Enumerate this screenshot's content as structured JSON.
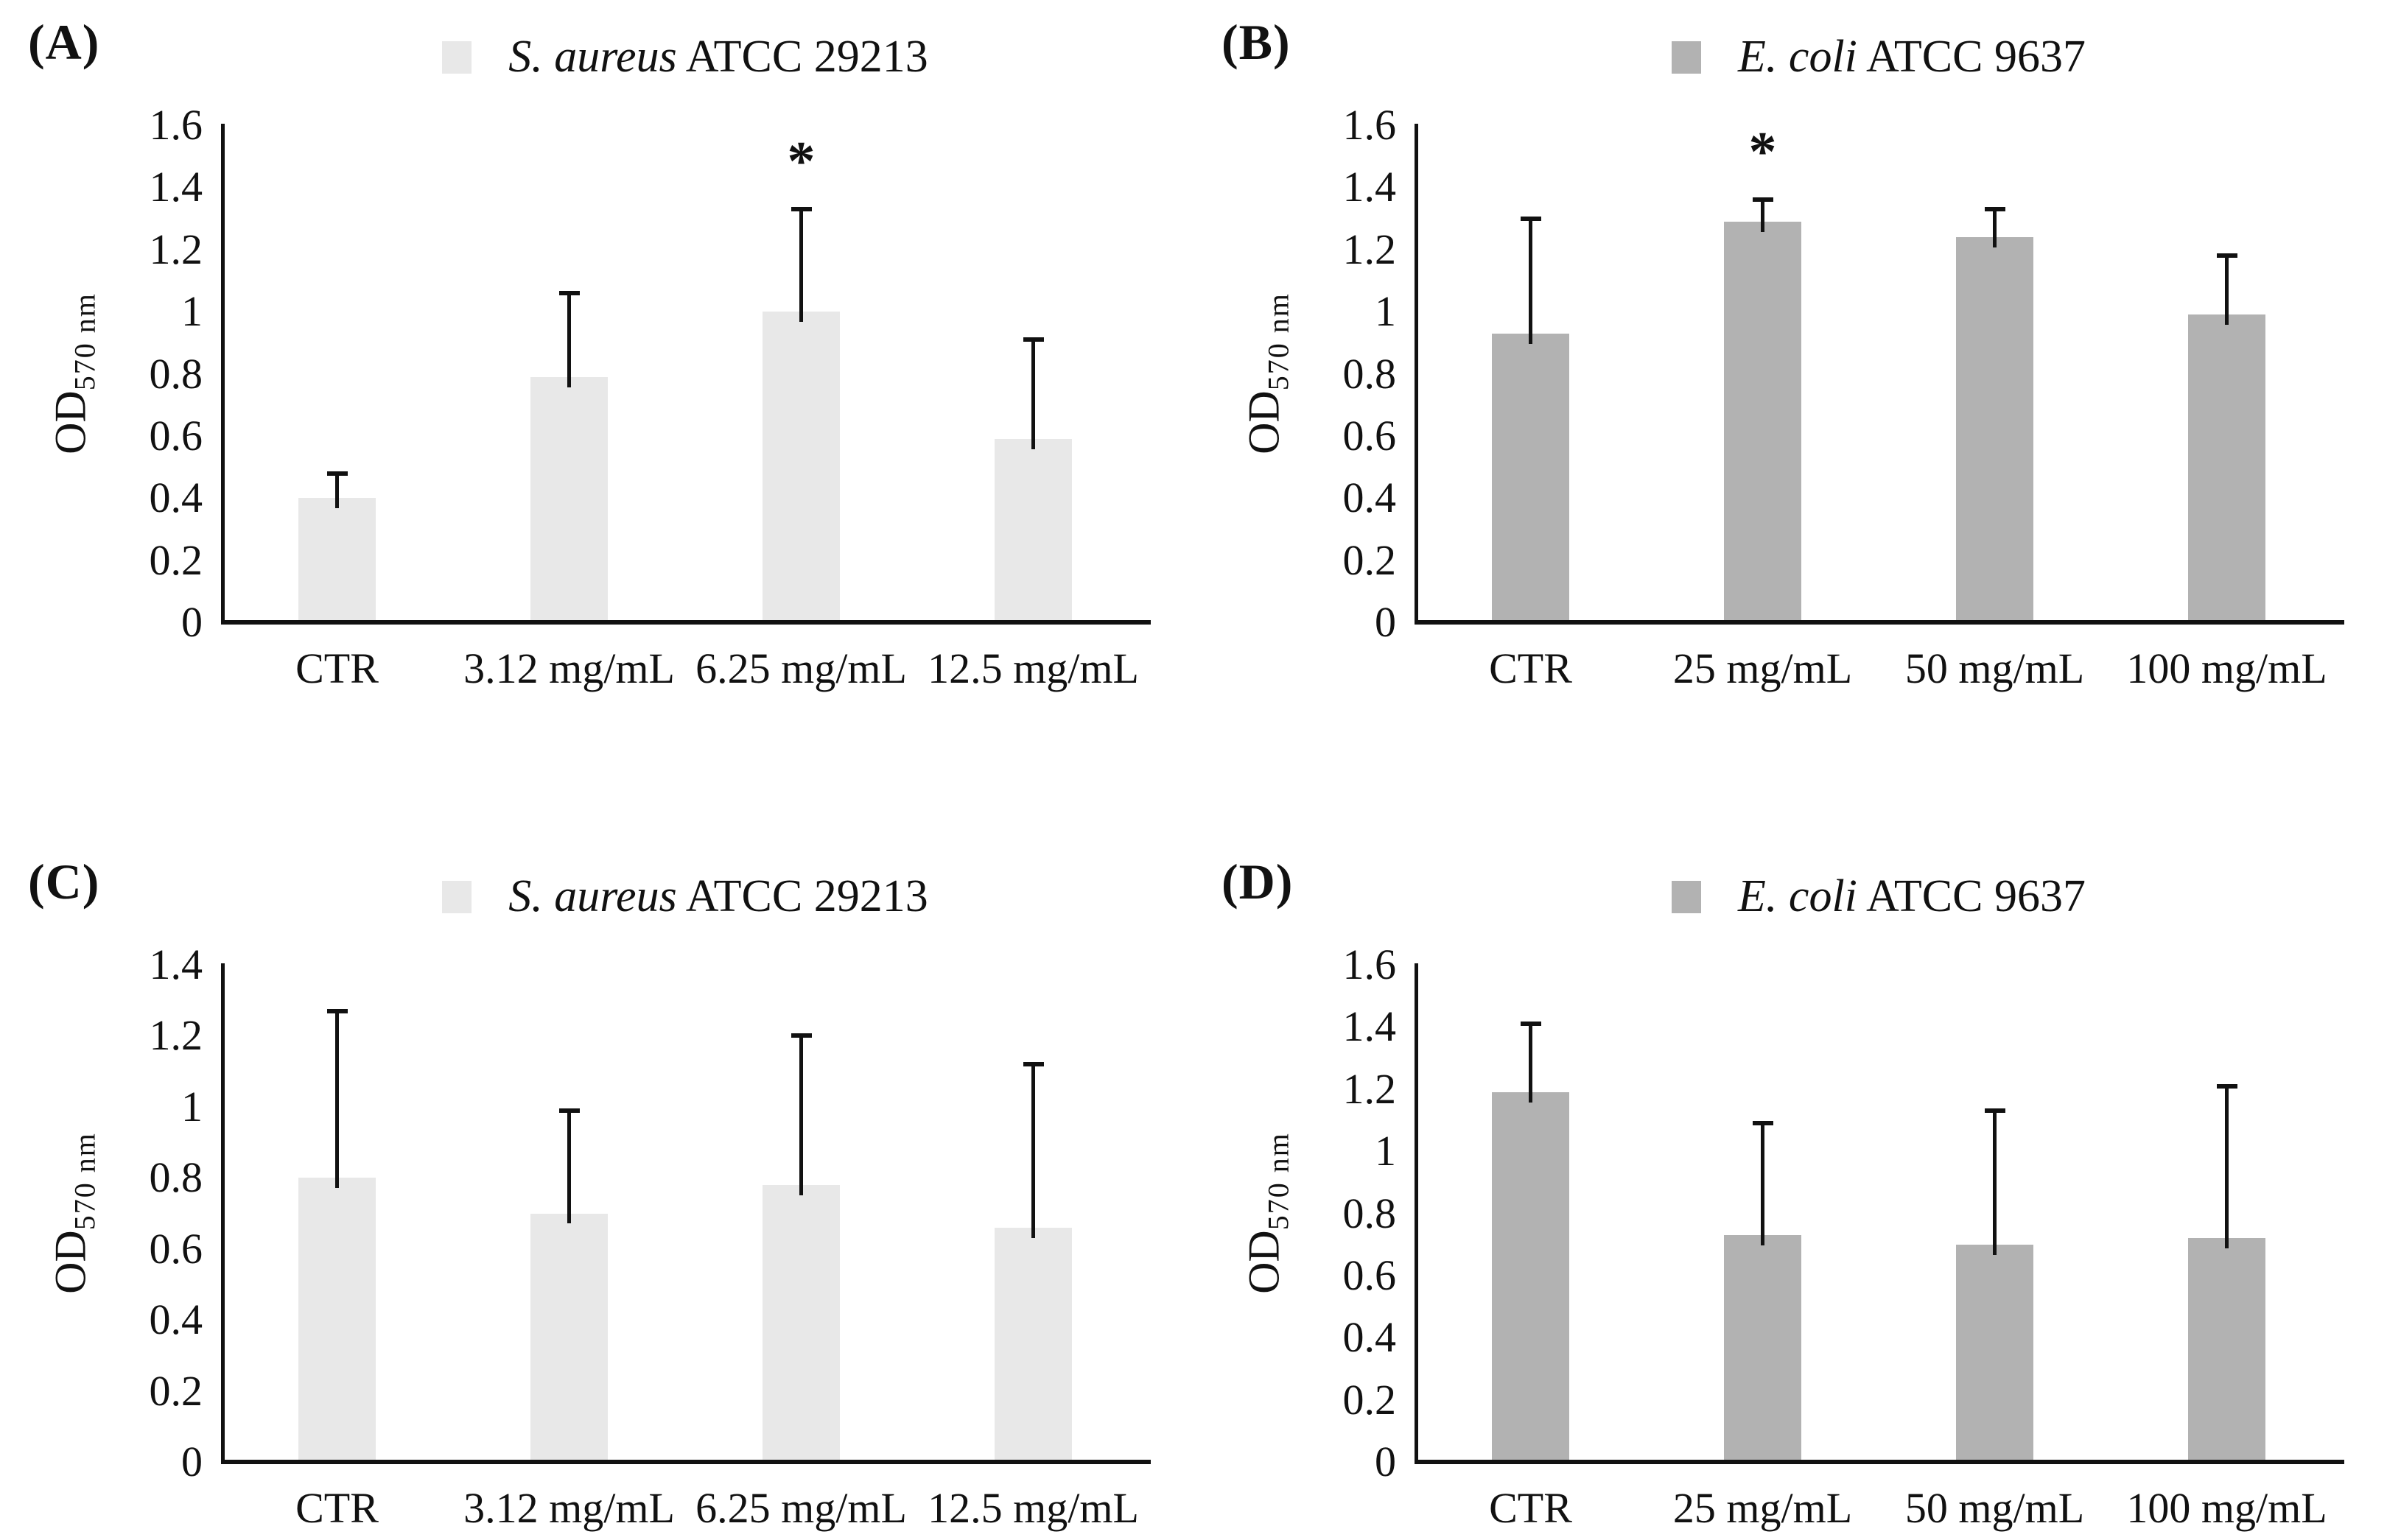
{
  "figure": {
    "background": "#ffffff",
    "text_color": "#111111",
    "y_axis_label": {
      "base": "OD",
      "sub": "570 nm"
    }
  },
  "chart_data": [
    {
      "type": "bar",
      "panel_label": "(A)",
      "legend": {
        "species": "S. aureus",
        "strain": " ATCC 29213",
        "swatch_color": "#e8e8e8"
      },
      "categories": [
        "CTR",
        "3.12 mg/mL",
        "6.25 mg/mL",
        "12.5 mg/mL"
      ],
      "values": [
        0.4,
        0.79,
        1.0,
        0.59
      ],
      "errors": [
        0.08,
        0.27,
        0.33,
        0.32
      ],
      "annotations": [
        {
          "index": 2,
          "text": "*"
        }
      ],
      "ylabel": "OD570 nm",
      "ylim": [
        0,
        1.6
      ],
      "ytick_step": 0.2,
      "bar_color": "#e8e8e8",
      "grid": false,
      "legend_position": "top-center"
    },
    {
      "type": "bar",
      "panel_label": "(B)",
      "legend": {
        "species": "E. coli",
        "strain": " ATCC 9637",
        "swatch_color": "#b2b2b2"
      },
      "categories": [
        "CTR",
        "25 mg/mL",
        "50 mg/mL",
        "100 mg/mL"
      ],
      "values": [
        0.93,
        1.29,
        1.24,
        0.99
      ],
      "errors": [
        0.37,
        0.07,
        0.09,
        0.19
      ],
      "annotations": [
        {
          "index": 1,
          "text": "*"
        }
      ],
      "ylabel": "OD570 nm",
      "ylim": [
        0,
        1.6
      ],
      "ytick_step": 0.2,
      "bar_color": "#b2b2b2",
      "grid": false,
      "legend_position": "top-center"
    },
    {
      "type": "bar",
      "panel_label": "(C)",
      "legend": {
        "species": "S. aureus",
        "strain": " ATCC 29213",
        "swatch_color": "#e8e8e8"
      },
      "categories": [
        "CTR",
        "3.12 mg/mL",
        "6.25 mg/mL",
        "12.5 mg/mL"
      ],
      "values": [
        0.8,
        0.7,
        0.78,
        0.66
      ],
      "errors": [
        0.47,
        0.29,
        0.42,
        0.46
      ],
      "annotations": [],
      "ylabel": "OD570 nm",
      "ylim": [
        0,
        1.4
      ],
      "ytick_step": 0.2,
      "bar_color": "#e8e8e8",
      "grid": false,
      "legend_position": "top-center"
    },
    {
      "type": "bar",
      "panel_label": "(D)",
      "legend": {
        "species": "E. coli",
        "strain": " ATCC 9637",
        "swatch_color": "#b2b2b2"
      },
      "categories": [
        "CTR",
        "25 mg/mL",
        "50 mg/mL",
        "100 mg/mL"
      ],
      "values": [
        1.19,
        0.73,
        0.7,
        0.72
      ],
      "errors": [
        0.22,
        0.36,
        0.43,
        0.49
      ],
      "annotations": [],
      "ylabel": "OD570 nm",
      "ylim": [
        0,
        1.6
      ],
      "ytick_step": 0.2,
      "bar_color": "#b2b2b2",
      "grid": false,
      "legend_position": "top-center"
    }
  ]
}
